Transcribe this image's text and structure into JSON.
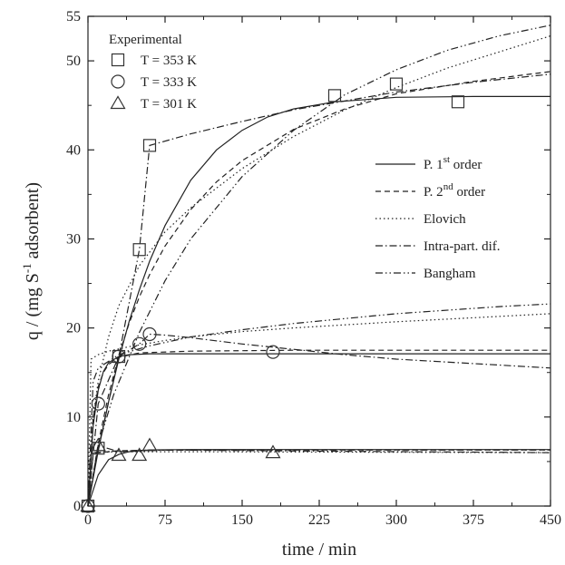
{
  "chart_data": {
    "type": "scatter",
    "xlabel": "time / min",
    "ylabel_parts": [
      "q / (mg S",
      "-1",
      " adsorbent)"
    ],
    "xlim": [
      0,
      450
    ],
    "ylim": [
      0,
      55
    ],
    "xticks": [
      0,
      75,
      150,
      225,
      300,
      375,
      450
    ],
    "yticks": [
      0,
      10,
      20,
      30,
      40,
      50,
      55
    ],
    "grid": false,
    "experimental_title": "Experimental",
    "experimental_series": [
      {
        "name": "T = 353 K",
        "marker": "square",
        "points": [
          [
            0,
            0
          ],
          [
            10,
            6.5
          ],
          [
            30,
            16.8
          ],
          [
            50,
            28.8
          ],
          [
            60,
            40.5
          ],
          [
            240,
            46.1
          ],
          [
            300,
            47.4
          ],
          [
            360,
            45.4
          ]
        ]
      },
      {
        "name": "T = 333 K",
        "marker": "circle",
        "points": [
          [
            0,
            0
          ],
          [
            10,
            11.5
          ],
          [
            30,
            16.8
          ],
          [
            50,
            18.2
          ],
          [
            60,
            19.3
          ],
          [
            180,
            17.3
          ]
        ]
      },
      {
        "name": "T = 301 K",
        "marker": "triangle",
        "points": [
          [
            0,
            0
          ],
          [
            10,
            6.8
          ],
          [
            30,
            5.7
          ],
          [
            50,
            5.7
          ],
          [
            60,
            6.8
          ],
          [
            180,
            6.0
          ]
        ]
      }
    ],
    "model_series": [
      {
        "name": "P. 1",
        "sup": "st",
        "suffix": " order",
        "dash": "none"
      },
      {
        "name": "P. 2",
        "sup": "nd",
        "suffix": " order",
        "dash": "6,4"
      },
      {
        "name": "Elovich",
        "sup": "",
        "suffix": "",
        "dash": "1.5,3"
      },
      {
        "name": "Intra-part. dif.",
        "sup": "",
        "suffix": "",
        "dash": "8,3,1.5,3"
      },
      {
        "name": "Bangham",
        "sup": "",
        "suffix": "",
        "dash": "8,3,1.5,3,1.5,3"
      }
    ],
    "fitted_curves": [
      {
        "model": "P. 1st order",
        "dataset": "353 K",
        "points": [
          [
            0,
            0
          ],
          [
            10,
            6.2
          ],
          [
            20,
            11.7
          ],
          [
            30,
            16.5
          ],
          [
            40,
            20.7
          ],
          [
            50,
            24.3
          ],
          [
            60,
            27.5
          ],
          [
            75,
            31.5
          ],
          [
            100,
            36.6
          ],
          [
            125,
            40.0
          ],
          [
            150,
            42.2
          ],
          [
            175,
            43.7
          ],
          [
            200,
            44.6
          ],
          [
            240,
            45.4
          ],
          [
            300,
            45.9
          ],
          [
            375,
            46.0
          ],
          [
            450,
            46.0
          ]
        ]
      },
      {
        "model": "P. 2nd order",
        "dataset": "353 K",
        "points": [
          [
            0,
            0
          ],
          [
            10,
            7.0
          ],
          [
            20,
            12.5
          ],
          [
            30,
            16.9
          ],
          [
            40,
            20.5
          ],
          [
            50,
            23.5
          ],
          [
            60,
            26.0
          ],
          [
            75,
            29.2
          ],
          [
            100,
            33.3
          ],
          [
            125,
            36.4
          ],
          [
            150,
            38.8
          ],
          [
            200,
            42.3
          ],
          [
            250,
            44.6
          ],
          [
            300,
            46.3
          ],
          [
            375,
            47.7
          ],
          [
            450,
            48.8
          ]
        ]
      },
      {
        "model": "Elovich",
        "dataset": "353 K",
        "points": [
          [
            0,
            0
          ],
          [
            5,
            10.0
          ],
          [
            10,
            14.0
          ],
          [
            20,
            19.0
          ],
          [
            30,
            22.5
          ],
          [
            50,
            27.0
          ],
          [
            75,
            30.8
          ],
          [
            100,
            33.5
          ],
          [
            150,
            37.9
          ],
          [
            200,
            41.5
          ],
          [
            250,
            44.5
          ],
          [
            300,
            47.0
          ],
          [
            350,
            49.2
          ],
          [
            400,
            51.0
          ],
          [
            450,
            52.8
          ]
        ]
      },
      {
        "model": "Intra-part. dif.",
        "dataset": "353 K",
        "points": [
          [
            0,
            0
          ],
          [
            10,
            6.5
          ],
          [
            30,
            16.8
          ],
          [
            50,
            28.8
          ],
          [
            60,
            40.5
          ],
          [
            100,
            41.8
          ],
          [
            150,
            43.2
          ],
          [
            200,
            44.5
          ],
          [
            250,
            45.5
          ],
          [
            300,
            46.5
          ],
          [
            375,
            47.6
          ],
          [
            450,
            48.5
          ]
        ]
      },
      {
        "model": "Bangham",
        "dataset": "353 K",
        "points": [
          [
            0,
            0
          ],
          [
            10,
            6.8
          ],
          [
            25,
            12.5
          ],
          [
            50,
            19.5
          ],
          [
            75,
            25.3
          ],
          [
            100,
            30.0
          ],
          [
            150,
            37.0
          ],
          [
            200,
            42.2
          ],
          [
            250,
            46.2
          ],
          [
            300,
            49.0
          ],
          [
            350,
            51.2
          ],
          [
            400,
            52.8
          ],
          [
            450,
            54.0
          ]
        ]
      },
      {
        "model": "P. 1st order",
        "dataset": "333 K",
        "points": [
          [
            0,
            0
          ],
          [
            5,
            9.0
          ],
          [
            10,
            13.0
          ],
          [
            15,
            15.1
          ],
          [
            20,
            16.1
          ],
          [
            30,
            16.8
          ],
          [
            40,
            17.0
          ],
          [
            60,
            17.1
          ],
          [
            100,
            17.1
          ],
          [
            450,
            17.1
          ]
        ]
      },
      {
        "model": "P. 2nd order",
        "dataset": "333 K",
        "points": [
          [
            0,
            0
          ],
          [
            5,
            9.8
          ],
          [
            10,
            13.4
          ],
          [
            15,
            15.0
          ],
          [
            20,
            15.9
          ],
          [
            30,
            16.7
          ],
          [
            50,
            17.2
          ],
          [
            100,
            17.4
          ],
          [
            200,
            17.5
          ],
          [
            450,
            17.5
          ]
        ]
      },
      {
        "model": "Elovich",
        "dataset": "333 K",
        "points": [
          [
            0,
            0
          ],
          [
            3,
            16.5
          ],
          [
            10,
            17.0
          ],
          [
            20,
            17.4
          ],
          [
            40,
            17.9
          ],
          [
            75,
            18.6
          ],
          [
            100,
            19.0
          ],
          [
            150,
            19.6
          ],
          [
            200,
            20.0
          ],
          [
            300,
            20.7
          ],
          [
            400,
            21.3
          ],
          [
            450,
            21.6
          ]
        ]
      },
      {
        "model": "Intra-part. dif.",
        "dataset": "333 K",
        "points": [
          [
            0,
            0
          ],
          [
            10,
            11.5
          ],
          [
            30,
            16.8
          ],
          [
            50,
            18.2
          ],
          [
            60,
            19.3
          ],
          [
            75,
            19.2
          ],
          [
            100,
            18.9
          ],
          [
            150,
            18.2
          ],
          [
            200,
            17.6
          ],
          [
            250,
            17.0
          ],
          [
            300,
            16.5
          ],
          [
            375,
            16.0
          ],
          [
            450,
            15.5
          ]
        ]
      },
      {
        "model": "Bangham",
        "dataset": "333 K",
        "points": [
          [
            0,
            0
          ],
          [
            5,
            14.0
          ],
          [
            10,
            15.5
          ],
          [
            30,
            17.0
          ],
          [
            60,
            18.0
          ],
          [
            100,
            19.0
          ],
          [
            150,
            19.8
          ],
          [
            200,
            20.5
          ],
          [
            300,
            21.6
          ],
          [
            400,
            22.4
          ],
          [
            450,
            22.7
          ]
        ]
      },
      {
        "model": "P. 1st order",
        "dataset": "301 K",
        "points": [
          [
            0,
            0
          ],
          [
            10,
            3.5
          ],
          [
            20,
            5.2
          ],
          [
            30,
            5.8
          ],
          [
            40,
            6.1
          ],
          [
            60,
            6.3
          ],
          [
            100,
            6.35
          ],
          [
            450,
            6.35
          ]
        ]
      },
      {
        "model": "P. 2nd order",
        "dataset": "301 K",
        "points": [
          [
            0,
            0
          ],
          [
            5,
            5.8
          ],
          [
            10,
            6.0
          ],
          [
            30,
            6.2
          ],
          [
            75,
            6.3
          ],
          [
            450,
            6.3
          ]
        ]
      },
      {
        "model": "Elovich",
        "dataset": "301 K",
        "points": [
          [
            0,
            0
          ],
          [
            3,
            6.0
          ],
          [
            30,
            6.1
          ],
          [
            100,
            6.1
          ],
          [
            450,
            6.0
          ]
        ]
      },
      {
        "model": "Intra-part. dif.",
        "dataset": "301 K",
        "points": [
          [
            0,
            0
          ],
          [
            10,
            6.8
          ],
          [
            30,
            6.1
          ],
          [
            60,
            6.3
          ],
          [
            180,
            6.2
          ],
          [
            450,
            6.0
          ]
        ]
      },
      {
        "model": "Bangham",
        "dataset": "301 K",
        "points": [
          [
            0,
            0
          ],
          [
            5,
            6.0
          ],
          [
            30,
            6.2
          ],
          [
            100,
            6.3
          ],
          [
            450,
            6.3
          ]
        ]
      }
    ]
  }
}
